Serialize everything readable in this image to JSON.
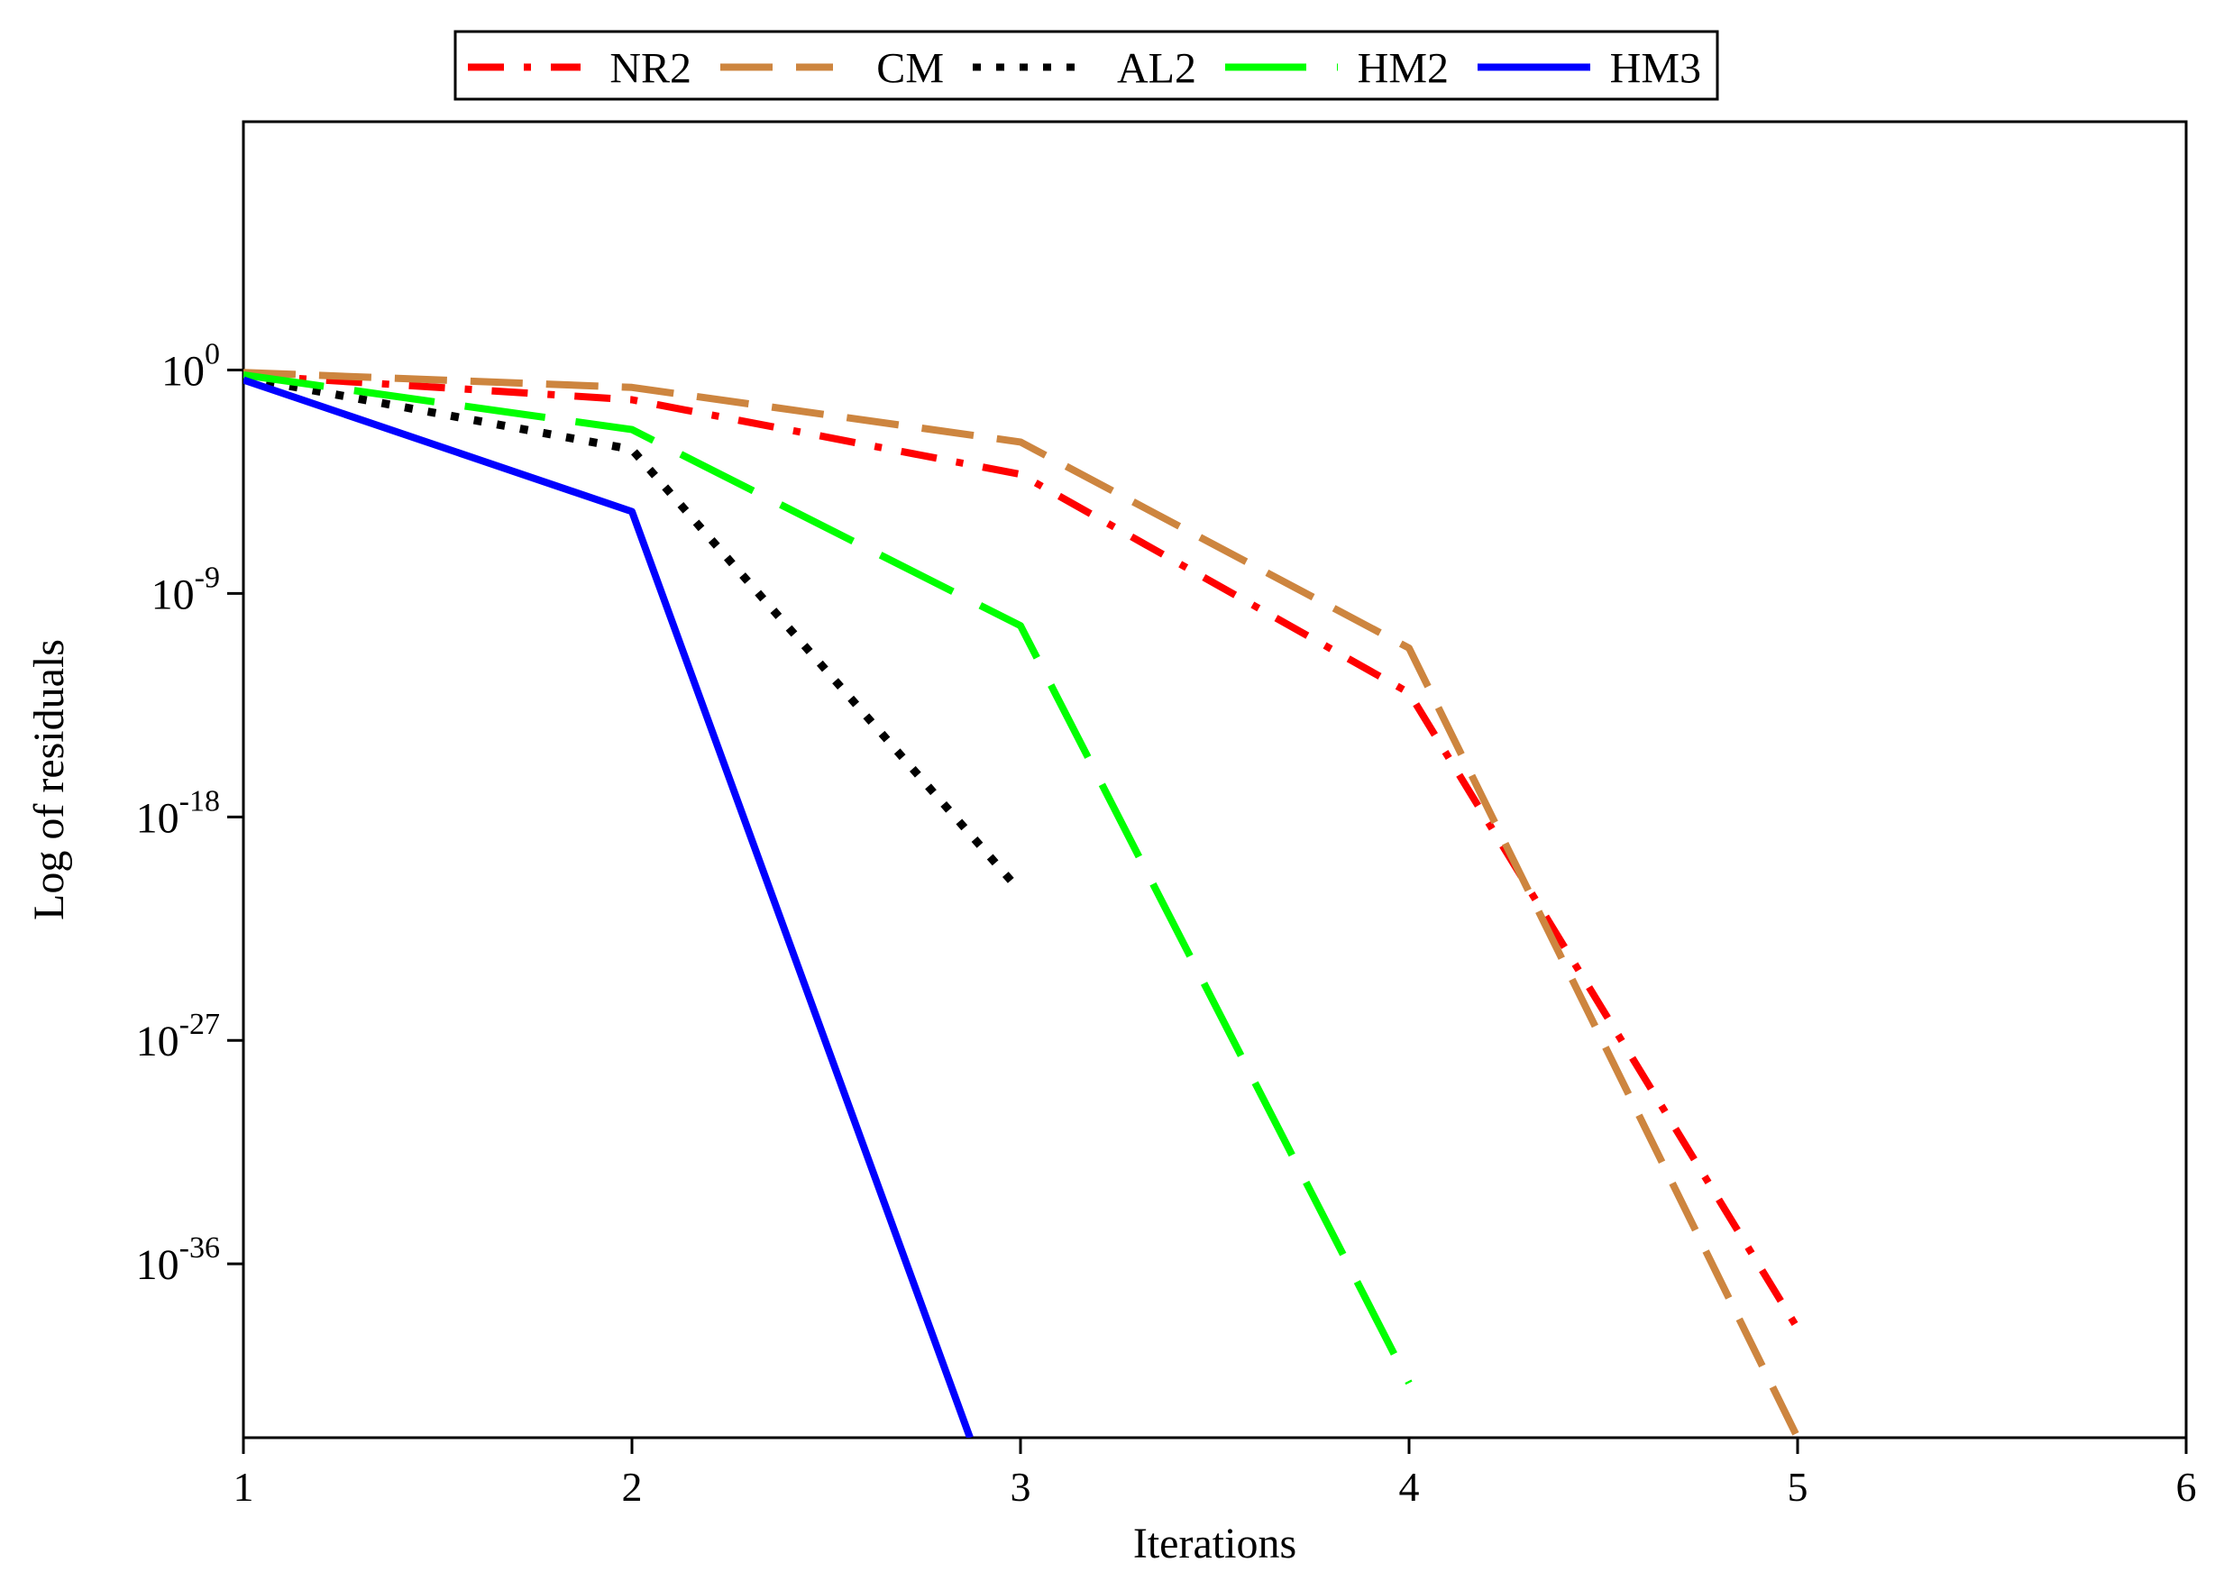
{
  "chart_data": {
    "type": "line",
    "title": "",
    "xlabel": "Iterations",
    "ylabel": "Log of residuals",
    "y_scale": "log10",
    "xlim": [
      1,
      6
    ],
    "ylim_log10": [
      -43,
      10
    ],
    "x_ticks": [
      {
        "value": 1,
        "label": "1"
      },
      {
        "value": 2,
        "label": "2"
      },
      {
        "value": 3,
        "label": "3"
      },
      {
        "value": 4,
        "label": "4"
      },
      {
        "value": 5,
        "label": "5"
      },
      {
        "value": 6,
        "label": "6"
      }
    ],
    "y_ticks": [
      {
        "log": 0,
        "base": "10",
        "exp": "0"
      },
      {
        "log": -9,
        "base": "10",
        "exp": "-9"
      },
      {
        "log": -18,
        "base": "10",
        "exp": "-18"
      },
      {
        "log": -27,
        "base": "10",
        "exp": "-27"
      },
      {
        "log": -36,
        "base": "10",
        "exp": "-36"
      }
    ],
    "legend_position": "top-center",
    "series": [
      {
        "name": "NR2",
        "color": "#ff0000",
        "style": "dash-dot",
        "x": [
          1,
          2,
          3,
          4,
          5
        ],
        "log10_y": [
          -0.2,
          -1.2,
          -4.2,
          -13.0,
          -38.6
        ]
      },
      {
        "name": "CM",
        "color": "#cd853f",
        "style": "long-dash",
        "x": [
          1,
          2,
          3,
          4,
          5
        ],
        "log10_y": [
          -0.1,
          -0.7,
          -2.9,
          -11.2,
          -43.0
        ]
      },
      {
        "name": "AL2",
        "color": "#000000",
        "style": "dotted",
        "x": [
          1,
          2,
          3
        ],
        "log10_y": [
          -0.3,
          -3.2,
          -21.0
        ]
      },
      {
        "name": "HM2",
        "color": "#00ff00",
        "style": "long-dash-short-gap",
        "x": [
          1,
          2,
          3,
          4
        ],
        "log10_y": [
          -0.2,
          -2.4,
          -10.3,
          -40.8
        ]
      },
      {
        "name": "HM3",
        "color": "#0000ff",
        "style": "solid",
        "x": [
          1,
          2,
          2.87
        ],
        "log10_y": [
          -0.4,
          -5.7,
          -43.0
        ]
      }
    ]
  }
}
